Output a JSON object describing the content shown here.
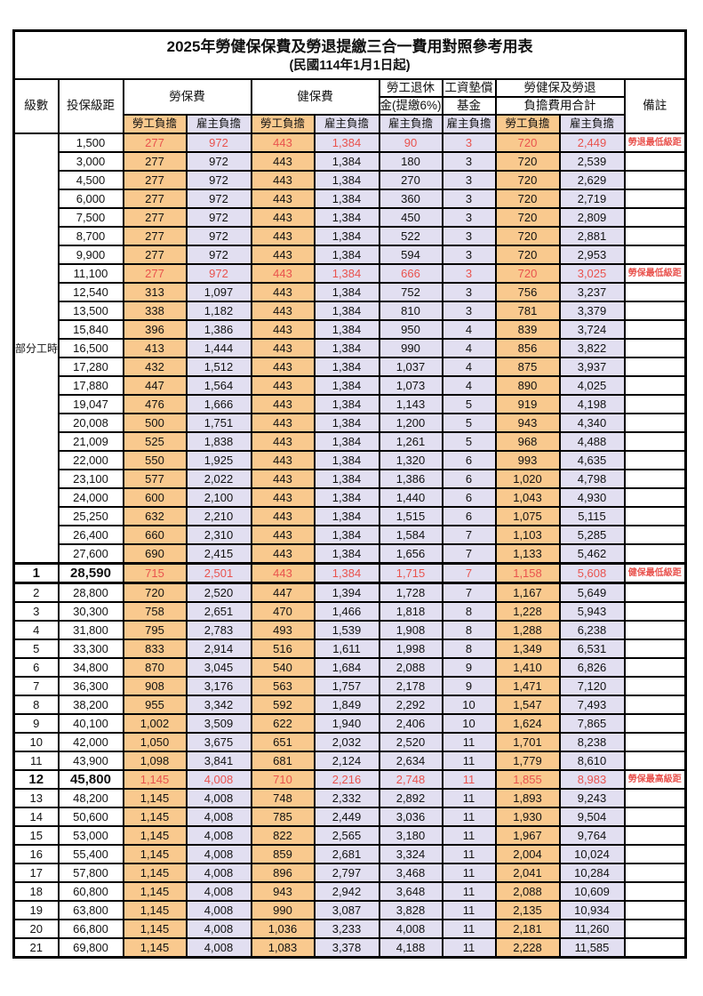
{
  "title": "2025年勞健保保費及勞退提繳三合一費用對照參考用表",
  "subtitle": "(民國114年1月1日起)",
  "colors": {
    "employee_bg": "#F9C98E",
    "employer_bg": "#E2DFF1",
    "highlight_text": "#E9534E",
    "border": "#000000"
  },
  "header": {
    "level": "級數",
    "bracket": "投保級距",
    "labor": "勞保費",
    "health": "健保費",
    "pension_line1": "勞工退休",
    "pension_line2": "金(提繳6%)",
    "wage_fund_line1": "工資墊償",
    "wage_fund_line2": "基金",
    "total_line1": "勞健保及勞退",
    "total_line2": "負擔費用合計",
    "note": "備註",
    "employee": "勞工負擔",
    "employer": "雇主負擔"
  },
  "part_time_label": "部分工時",
  "rows": [
    {
      "level": "",
      "bracket": "1,500",
      "values": [
        "277",
        "972",
        "443",
        "1,384",
        "90",
        "3",
        "720",
        "2,449"
      ],
      "note": "勞退最低級距",
      "highlight": true,
      "bold": false
    },
    {
      "level": "",
      "bracket": "3,000",
      "values": [
        "277",
        "972",
        "443",
        "1,384",
        "180",
        "3",
        "720",
        "2,539"
      ],
      "note": "",
      "highlight": false,
      "bold": false
    },
    {
      "level": "",
      "bracket": "4,500",
      "values": [
        "277",
        "972",
        "443",
        "1,384",
        "270",
        "3",
        "720",
        "2,629"
      ],
      "note": "",
      "highlight": false,
      "bold": false
    },
    {
      "level": "",
      "bracket": "6,000",
      "values": [
        "277",
        "972",
        "443",
        "1,384",
        "360",
        "3",
        "720",
        "2,719"
      ],
      "note": "",
      "highlight": false,
      "bold": false
    },
    {
      "level": "",
      "bracket": "7,500",
      "values": [
        "277",
        "972",
        "443",
        "1,384",
        "450",
        "3",
        "720",
        "2,809"
      ],
      "note": "",
      "highlight": false,
      "bold": false
    },
    {
      "level": "",
      "bracket": "8,700",
      "values": [
        "277",
        "972",
        "443",
        "1,384",
        "522",
        "3",
        "720",
        "2,881"
      ],
      "note": "",
      "highlight": false,
      "bold": false
    },
    {
      "level": "",
      "bracket": "9,900",
      "values": [
        "277",
        "972",
        "443",
        "1,384",
        "594",
        "3",
        "720",
        "2,953"
      ],
      "note": "",
      "highlight": false,
      "bold": false
    },
    {
      "level": "",
      "bracket": "11,100",
      "values": [
        "277",
        "972",
        "443",
        "1,384",
        "666",
        "3",
        "720",
        "3,025"
      ],
      "note": "勞保最低級距",
      "highlight": true,
      "bold": false
    },
    {
      "level": "",
      "bracket": "12,540",
      "values": [
        "313",
        "1,097",
        "443",
        "1,384",
        "752",
        "3",
        "756",
        "3,237"
      ],
      "note": "",
      "highlight": false,
      "bold": false
    },
    {
      "level": "",
      "bracket": "13,500",
      "values": [
        "338",
        "1,182",
        "443",
        "1,384",
        "810",
        "3",
        "781",
        "3,379"
      ],
      "note": "",
      "highlight": false,
      "bold": false
    },
    {
      "level": "",
      "bracket": "15,840",
      "values": [
        "396",
        "1,386",
        "443",
        "1,384",
        "950",
        "4",
        "839",
        "3,724"
      ],
      "note": "",
      "highlight": false,
      "bold": false
    },
    {
      "level": "",
      "bracket": "16,500",
      "values": [
        "413",
        "1,444",
        "443",
        "1,384",
        "990",
        "4",
        "856",
        "3,822"
      ],
      "note": "",
      "highlight": false,
      "bold": false
    },
    {
      "level": "",
      "bracket": "17,280",
      "values": [
        "432",
        "1,512",
        "443",
        "1,384",
        "1,037",
        "4",
        "875",
        "3,937"
      ],
      "note": "",
      "highlight": false,
      "bold": false
    },
    {
      "level": "",
      "bracket": "17,880",
      "values": [
        "447",
        "1,564",
        "443",
        "1,384",
        "1,073",
        "4",
        "890",
        "4,025"
      ],
      "note": "",
      "highlight": false,
      "bold": false
    },
    {
      "level": "",
      "bracket": "19,047",
      "values": [
        "476",
        "1,666",
        "443",
        "1,384",
        "1,143",
        "5",
        "919",
        "4,198"
      ],
      "note": "",
      "highlight": false,
      "bold": false
    },
    {
      "level": "",
      "bracket": "20,008",
      "values": [
        "500",
        "1,751",
        "443",
        "1,384",
        "1,200",
        "5",
        "943",
        "4,340"
      ],
      "note": "",
      "highlight": false,
      "bold": false
    },
    {
      "level": "",
      "bracket": "21,009",
      "values": [
        "525",
        "1,838",
        "443",
        "1,384",
        "1,261",
        "5",
        "968",
        "4,488"
      ],
      "note": "",
      "highlight": false,
      "bold": false
    },
    {
      "level": "",
      "bracket": "22,000",
      "values": [
        "550",
        "1,925",
        "443",
        "1,384",
        "1,320",
        "6",
        "993",
        "4,635"
      ],
      "note": "",
      "highlight": false,
      "bold": false
    },
    {
      "level": "",
      "bracket": "23,100",
      "values": [
        "577",
        "2,022",
        "443",
        "1,384",
        "1,386",
        "6",
        "1,020",
        "4,798"
      ],
      "note": "",
      "highlight": false,
      "bold": false
    },
    {
      "level": "",
      "bracket": "24,000",
      "values": [
        "600",
        "2,100",
        "443",
        "1,384",
        "1,440",
        "6",
        "1,043",
        "4,930"
      ],
      "note": "",
      "highlight": false,
      "bold": false
    },
    {
      "level": "",
      "bracket": "25,250",
      "values": [
        "632",
        "2,210",
        "443",
        "1,384",
        "1,515",
        "6",
        "1,075",
        "5,115"
      ],
      "note": "",
      "highlight": false,
      "bold": false
    },
    {
      "level": "",
      "bracket": "26,400",
      "values": [
        "660",
        "2,310",
        "443",
        "1,384",
        "1,584",
        "7",
        "1,103",
        "5,285"
      ],
      "note": "",
      "highlight": false,
      "bold": false
    },
    {
      "level": "",
      "bracket": "27,600",
      "values": [
        "690",
        "2,415",
        "443",
        "1,384",
        "1,656",
        "7",
        "1,133",
        "5,462"
      ],
      "note": "",
      "highlight": false,
      "bold": false
    },
    {
      "level": "1",
      "bracket": "28,590",
      "values": [
        "715",
        "2,501",
        "443",
        "1,384",
        "1,715",
        "7",
        "1,158",
        "5,608"
      ],
      "note": "健保最低級距",
      "highlight": true,
      "bold": true
    },
    {
      "level": "2",
      "bracket": "28,800",
      "values": [
        "720",
        "2,520",
        "447",
        "1,394",
        "1,728",
        "7",
        "1,167",
        "5,649"
      ],
      "note": "",
      "highlight": false,
      "bold": false
    },
    {
      "level": "3",
      "bracket": "30,300",
      "values": [
        "758",
        "2,651",
        "470",
        "1,466",
        "1,818",
        "8",
        "1,228",
        "5,943"
      ],
      "note": "",
      "highlight": false,
      "bold": false
    },
    {
      "level": "4",
      "bracket": "31,800",
      "values": [
        "795",
        "2,783",
        "493",
        "1,539",
        "1,908",
        "8",
        "1,288",
        "6,238"
      ],
      "note": "",
      "highlight": false,
      "bold": false
    },
    {
      "level": "5",
      "bracket": "33,300",
      "values": [
        "833",
        "2,914",
        "516",
        "1,611",
        "1,998",
        "8",
        "1,349",
        "6,531"
      ],
      "note": "",
      "highlight": false,
      "bold": false
    },
    {
      "level": "6",
      "bracket": "34,800",
      "values": [
        "870",
        "3,045",
        "540",
        "1,684",
        "2,088",
        "9",
        "1,410",
        "6,826"
      ],
      "note": "",
      "highlight": false,
      "bold": false
    },
    {
      "level": "7",
      "bracket": "36,300",
      "values": [
        "908",
        "3,176",
        "563",
        "1,757",
        "2,178",
        "9",
        "1,471",
        "7,120"
      ],
      "note": "",
      "highlight": false,
      "bold": false
    },
    {
      "level": "8",
      "bracket": "38,200",
      "values": [
        "955",
        "3,342",
        "592",
        "1,849",
        "2,292",
        "10",
        "1,547",
        "7,493"
      ],
      "note": "",
      "highlight": false,
      "bold": false
    },
    {
      "level": "9",
      "bracket": "40,100",
      "values": [
        "1,002",
        "3,509",
        "622",
        "1,940",
        "2,406",
        "10",
        "1,624",
        "7,865"
      ],
      "note": "",
      "highlight": false,
      "bold": false
    },
    {
      "level": "10",
      "bracket": "42,000",
      "values": [
        "1,050",
        "3,675",
        "651",
        "2,032",
        "2,520",
        "11",
        "1,701",
        "8,238"
      ],
      "note": "",
      "highlight": false,
      "bold": false
    },
    {
      "level": "11",
      "bracket": "43,900",
      "values": [
        "1,098",
        "3,841",
        "681",
        "2,124",
        "2,634",
        "11",
        "1,779",
        "8,610"
      ],
      "note": "",
      "highlight": false,
      "bold": false
    },
    {
      "level": "12",
      "bracket": "45,800",
      "values": [
        "1,145",
        "4,008",
        "710",
        "2,216",
        "2,748",
        "11",
        "1,855",
        "8,983"
      ],
      "note": "勞保最高級距",
      "highlight": true,
      "bold": true
    },
    {
      "level": "13",
      "bracket": "48,200",
      "values": [
        "1,145",
        "4,008",
        "748",
        "2,332",
        "2,892",
        "11",
        "1,893",
        "9,243"
      ],
      "note": "",
      "highlight": false,
      "bold": false
    },
    {
      "level": "14",
      "bracket": "50,600",
      "values": [
        "1,145",
        "4,008",
        "785",
        "2,449",
        "3,036",
        "11",
        "1,930",
        "9,504"
      ],
      "note": "",
      "highlight": false,
      "bold": false
    },
    {
      "level": "15",
      "bracket": "53,000",
      "values": [
        "1,145",
        "4,008",
        "822",
        "2,565",
        "3,180",
        "11",
        "1,967",
        "9,764"
      ],
      "note": "",
      "highlight": false,
      "bold": false
    },
    {
      "level": "16",
      "bracket": "55,400",
      "values": [
        "1,145",
        "4,008",
        "859",
        "2,681",
        "3,324",
        "11",
        "2,004",
        "10,024"
      ],
      "note": "",
      "highlight": false,
      "bold": false
    },
    {
      "level": "17",
      "bracket": "57,800",
      "values": [
        "1,145",
        "4,008",
        "896",
        "2,797",
        "3,468",
        "11",
        "2,041",
        "10,284"
      ],
      "note": "",
      "highlight": false,
      "bold": false
    },
    {
      "level": "18",
      "bracket": "60,800",
      "values": [
        "1,145",
        "4,008",
        "943",
        "2,942",
        "3,648",
        "11",
        "2,088",
        "10,609"
      ],
      "note": "",
      "highlight": false,
      "bold": false
    },
    {
      "level": "19",
      "bracket": "63,800",
      "values": [
        "1,145",
        "4,008",
        "990",
        "3,087",
        "3,828",
        "11",
        "2,135",
        "10,934"
      ],
      "note": "",
      "highlight": false,
      "bold": false
    },
    {
      "level": "20",
      "bracket": "66,800",
      "values": [
        "1,145",
        "4,008",
        "1,036",
        "3,233",
        "4,008",
        "11",
        "2,181",
        "11,260"
      ],
      "note": "",
      "highlight": false,
      "bold": false
    },
    {
      "level": "21",
      "bracket": "69,800",
      "values": [
        "1,145",
        "4,008",
        "1,083",
        "3,378",
        "4,188",
        "11",
        "2,228",
        "11,585"
      ],
      "note": "",
      "highlight": false,
      "bold": false
    }
  ],
  "value_column_kinds": [
    "employee",
    "employer",
    "employee",
    "employer",
    "employer",
    "employer",
    "employee",
    "employer"
  ]
}
